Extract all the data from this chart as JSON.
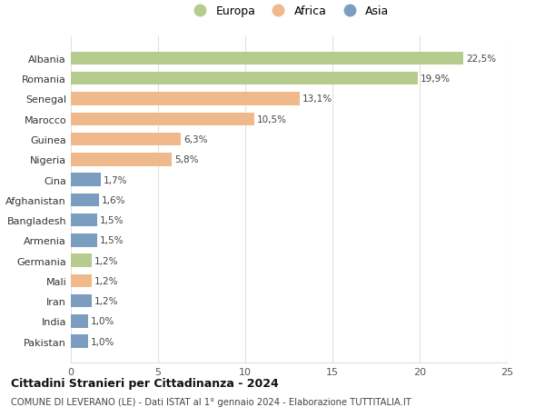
{
  "countries": [
    "Pakistan",
    "India",
    "Iran",
    "Mali",
    "Germania",
    "Armenia",
    "Bangladesh",
    "Afghanistan",
    "Cina",
    "Nigeria",
    "Guinea",
    "Marocco",
    "Senegal",
    "Romania",
    "Albania"
  ],
  "values": [
    1.0,
    1.0,
    1.2,
    1.2,
    1.2,
    1.5,
    1.5,
    1.6,
    1.7,
    5.8,
    6.3,
    10.5,
    13.1,
    19.9,
    22.5
  ],
  "labels": [
    "1,0%",
    "1,0%",
    "1,2%",
    "1,2%",
    "1,2%",
    "1,5%",
    "1,5%",
    "1,6%",
    "1,7%",
    "5,8%",
    "6,3%",
    "10,5%",
    "13,1%",
    "19,9%",
    "22,5%"
  ],
  "continents": [
    "Asia",
    "Asia",
    "Asia",
    "Africa",
    "Europa",
    "Asia",
    "Asia",
    "Asia",
    "Asia",
    "Africa",
    "Africa",
    "Africa",
    "Africa",
    "Europa",
    "Europa"
  ],
  "colors": {
    "Europa": "#b5cc8e",
    "Africa": "#f0b98b",
    "Asia": "#7b9dc0"
  },
  "legend_labels": [
    "Europa",
    "Africa",
    "Asia"
  ],
  "title": "Cittadini Stranieri per Cittadinanza - 2024",
  "subtitle": "COMUNE DI LEVERANO (LE) - Dati ISTAT al 1° gennaio 2024 - Elaborazione TUTTITALIA.IT",
  "xlim": [
    0,
    25
  ],
  "xticks": [
    0,
    5,
    10,
    15,
    20,
    25
  ],
  "bg_color": "#ffffff",
  "grid_color": "#e0e0e0",
  "bar_height": 0.65
}
